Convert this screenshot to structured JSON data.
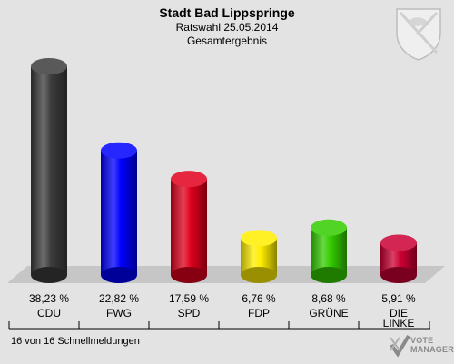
{
  "header": {
    "title": "Stadt Bad Lippspringe",
    "subtitle": "Ratswahl 25.05.2014",
    "subtitle2": "Gesamtergebnis"
  },
  "footer": {
    "status": "16 von 16 Schnellmeldungen"
  },
  "brand": {
    "line1": "VOTE",
    "line2": "MANAGER"
  },
  "chart_data": {
    "type": "bar",
    "title": "Stadt Bad Lippspringe",
    "categories": [
      "CDU",
      "FWG",
      "SPD",
      "FDP",
      "GRÜNE",
      "DIE LINKE"
    ],
    "category_lines": [
      [
        "CDU"
      ],
      [
        "FWG"
      ],
      [
        "SPD"
      ],
      [
        "FDP"
      ],
      [
        "GRÜNE"
      ],
      [
        "DIE",
        "LINKE"
      ]
    ],
    "values": [
      38.23,
      22.82,
      17.59,
      6.76,
      8.68,
      5.91
    ],
    "value_labels": [
      "38,23 %",
      "22,82 %",
      "17,59 %",
      "6,76 %",
      "8,68 %",
      "5,91 %"
    ],
    "colors": [
      "#3c3c3c",
      "#0000ff",
      "#e0001c",
      "#ffee00",
      "#33cc00",
      "#cc0033"
    ],
    "ylim": [
      0,
      40
    ],
    "grid": false,
    "legend": "none"
  }
}
